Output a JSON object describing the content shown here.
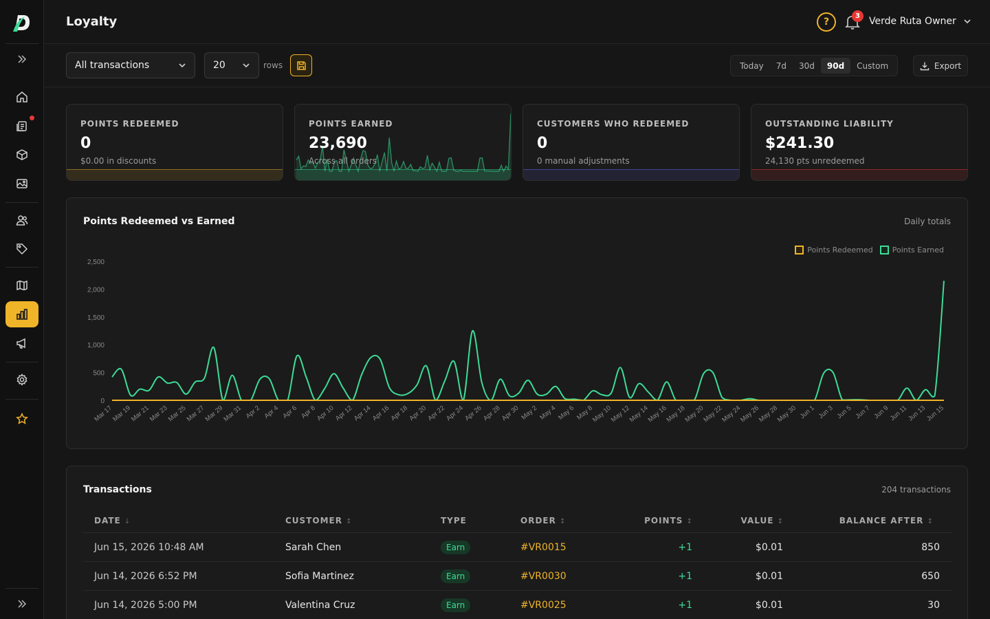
{
  "header": {
    "title": "Loyalty",
    "help_glyph": "?",
    "notifications_count": "3",
    "user_name": "Verde Ruta Owner"
  },
  "toolbar": {
    "filter_value": "All transactions",
    "rows_value": "20",
    "rows_label": "rows",
    "ranges": [
      "Today",
      "7d",
      "30d",
      "90d",
      "Custom"
    ],
    "active_range": "90d",
    "export_label": "Export"
  },
  "stats": [
    {
      "label": "POINTS REDEEMED",
      "value": "0",
      "sub": "$0.00 in discounts",
      "accent": "#f0b429"
    },
    {
      "label": "POINTS EARNED",
      "value": "23,690",
      "sub": "Across all orders",
      "accent": "#3ddc97"
    },
    {
      "label": "CUSTOMERS WHO REDEEMED",
      "value": "0",
      "sub": "0 manual adjustments",
      "accent": "#6366f1"
    },
    {
      "label": "OUTSTANDING LIABILITY",
      "value": "$241.30",
      "sub": "24,130 pts unredeemed",
      "accent": "#e53935"
    }
  ],
  "chart_panel": {
    "title": "Points Redeemed vs Earned",
    "subtitle": "Daily totals"
  },
  "chart_data": {
    "type": "line",
    "title": "Points Redeemed vs Earned",
    "xlabel": "",
    "ylabel": "",
    "ylim": [
      0,
      2500
    ],
    "yticks": [
      0,
      500,
      1000,
      1500,
      2000,
      2500
    ],
    "ytick_labels": [
      "0",
      "500",
      "1,000",
      "1,500",
      "2,000",
      "2,500"
    ],
    "legend_position": "top-right",
    "x_tick_labels": [
      "Mar 17",
      "Mar 19",
      "Mar 21",
      "Mar 23",
      "Mar 25",
      "Mar 27",
      "Mar 29",
      "Mar 31",
      "Apr 2",
      "Apr 4",
      "Apr 6",
      "Apr 8",
      "Apr 10",
      "Apr 12",
      "Apr 14",
      "Apr 16",
      "Apr 18",
      "Apr 20",
      "Apr 22",
      "Apr 24",
      "Apr 26",
      "Apr 28",
      "Apr 30",
      "May 2",
      "May 4",
      "May 6",
      "May 8",
      "May 10",
      "May 12",
      "May 14",
      "May 16",
      "May 18",
      "May 20",
      "May 22",
      "May 24",
      "May 26",
      "May 28",
      "May 30",
      "Jun 1",
      "Jun 3",
      "Jun 5",
      "Jun 7",
      "Jun 9",
      "Jun 11",
      "Jun 13",
      "Jun 15"
    ],
    "series": [
      {
        "name": "Points Redeemed",
        "color": "#f0b429",
        "values": [
          0,
          0,
          0,
          0,
          0,
          0,
          0,
          0,
          0,
          0,
          0,
          0,
          0,
          0,
          0,
          0,
          0,
          0,
          0,
          0,
          0,
          0,
          0,
          0,
          0,
          0,
          0,
          0,
          0,
          0,
          0,
          0,
          0,
          0,
          0,
          0,
          0,
          0,
          0,
          0,
          0,
          0,
          0,
          0,
          0,
          0,
          0,
          0,
          0,
          0,
          0,
          0,
          0,
          0,
          0,
          0,
          0,
          0,
          0,
          0,
          0,
          0,
          0,
          0,
          0,
          0,
          0,
          0,
          0,
          0,
          0,
          0,
          0,
          0,
          0,
          0,
          0,
          0,
          0,
          0,
          0,
          0,
          0,
          0,
          0,
          0,
          0,
          0,
          0,
          0,
          0
        ]
      },
      {
        "name": "Points Earned",
        "color": "#3ddc97",
        "values": [
          420,
          560,
          90,
          200,
          180,
          420,
          310,
          320,
          110,
          330,
          400,
          950,
          0,
          450,
          0,
          0,
          380,
          390,
          0,
          0,
          800,
          420,
          0,
          210,
          480,
          220,
          0,
          460,
          770,
          740,
          230,
          100,
          120,
          280,
          620,
          0,
          350,
          700,
          0,
          1250,
          320,
          0,
          380,
          80,
          130,
          360,
          110,
          110,
          250,
          30,
          20,
          0,
          170,
          100,
          130,
          590,
          50,
          300,
          150,
          0,
          330,
          0,
          0,
          2,
          480,
          500,
          50,
          0,
          0,
          30,
          0,
          0,
          0,
          0,
          0,
          0,
          0,
          490,
          500,
          10,
          10,
          10,
          0,
          0,
          0,
          0,
          220,
          0,
          190,
          80,
          2150
        ]
      }
    ]
  },
  "transactions": {
    "title": "Transactions",
    "count_label": "204 transactions",
    "columns": [
      {
        "label": "DATE",
        "sort": "↓"
      },
      {
        "label": "CUSTOMER",
        "sort": "↕"
      },
      {
        "label": "TYPE",
        "sort": ""
      },
      {
        "label": "ORDER",
        "sort": "↕"
      },
      {
        "label": "POINTS",
        "sort": "↕"
      },
      {
        "label": "VALUE",
        "sort": "↕"
      },
      {
        "label": "BALANCE AFTER",
        "sort": "↕"
      }
    ],
    "rows": [
      {
        "date": "Jun 15, 2026 10:48 AM",
        "customer": "Sarah Chen",
        "type": "Earn",
        "order": "#VR0015",
        "points": "+1",
        "value": "$0.01",
        "balance": "850"
      },
      {
        "date": "Jun 14, 2026 6:52 PM",
        "customer": "Sofia Martinez",
        "type": "Earn",
        "order": "#VR0030",
        "points": "+1",
        "value": "$0.01",
        "balance": "650"
      },
      {
        "date": "Jun 14, 2026 5:00 PM",
        "customer": "Valentina Cruz",
        "type": "Earn",
        "order": "#VR0025",
        "points": "+1",
        "value": "$0.01",
        "balance": "30"
      }
    ]
  },
  "sidebar": {
    "icons": [
      "expand-icon",
      "home-icon",
      "orders-icon",
      "products-icon",
      "media-icon",
      "customers-icon",
      "tag-icon",
      "catalog-icon",
      "analytics-icon",
      "marketing-icon",
      "settings-icon",
      "star-icon",
      "collapse-icon"
    ]
  }
}
